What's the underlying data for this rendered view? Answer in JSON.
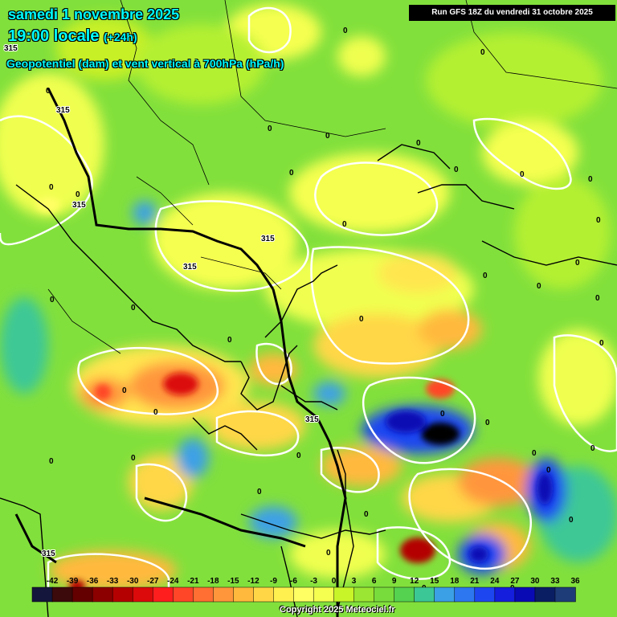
{
  "header": {
    "date_line": "samedi 1 novembre 2025",
    "time_line": "19:00 locale",
    "time_offset": "(+24h)",
    "parameter": "Geopotentiel (dam) et vent vertical à 700hPa (hPa/h)",
    "run_info": "Run GFS 18Z du vendredi 31 octobre 2025"
  },
  "footer": {
    "copyright": "Copyright 2025 Meteociel.fr"
  },
  "colors": {
    "title": "#00ffff",
    "contour": "#ffffff",
    "coastline": "#000000"
  },
  "legend": {
    "ticks": [
      "-42",
      "-39",
      "-36",
      "-33",
      "-30",
      "-27",
      "-24",
      "-21",
      "-18",
      "-15",
      "-12",
      "-9",
      "-6",
      "-3",
      "0",
      "3",
      "6",
      "9",
      "12",
      "15",
      "18",
      "21",
      "24",
      "27",
      "30",
      "33",
      "36"
    ],
    "colors": [
      "#14163c",
      "#3c0a0a",
      "#640000",
      "#8c0000",
      "#b40000",
      "#dc0a0a",
      "#ff1e1e",
      "#ff4628",
      "#ff6e32",
      "#ff963c",
      "#ffb93c",
      "#ffd746",
      "#fff050",
      "#ffff64",
      "#f5ff50",
      "#c8f528",
      "#9be632",
      "#78dc3c",
      "#55d250",
      "#3cc896",
      "#3ca0e6",
      "#2d78f0",
      "#1e46f0",
      "#141edc",
      "#0a0ab4",
      "#0a1e64",
      "#1e3c78"
    ]
  },
  "map_labels": {
    "geopotential": [
      "315",
      "315",
      "315",
      "315",
      "315",
      "315",
      "315"
    ],
    "zero": "0"
  }
}
